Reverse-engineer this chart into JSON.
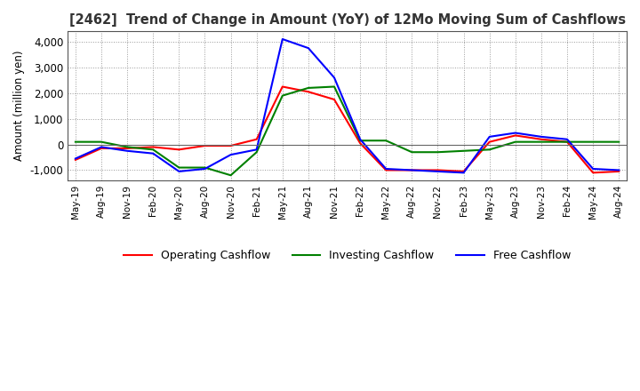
{
  "title": "[2462]  Trend of Change in Amount (YoY) of 12Mo Moving Sum of Cashflows",
  "ylabel": "Amount (million yen)",
  "ylim": [
    -1400,
    4400
  ],
  "yticks": [
    -1000,
    0,
    1000,
    2000,
    3000,
    4000
  ],
  "x_labels": [
    "May-19",
    "Aug-19",
    "Nov-19",
    "Feb-20",
    "May-20",
    "Aug-20",
    "Nov-20",
    "Feb-21",
    "May-21",
    "Aug-21",
    "Nov-21",
    "Feb-22",
    "May-22",
    "Aug-22",
    "Nov-22",
    "Feb-23",
    "May-23",
    "Aug-23",
    "Nov-23",
    "Feb-24",
    "May-24",
    "Aug-24"
  ],
  "operating": [
    -600,
    -150,
    -150,
    -100,
    -200,
    -50,
    -50,
    200,
    2250,
    2050,
    1750,
    50,
    -1000,
    -1000,
    -1000,
    -1050,
    100,
    350,
    200,
    100,
    -1100,
    -1050
  ],
  "investing": [
    100,
    100,
    -100,
    -200,
    -900,
    -900,
    -1200,
    -300,
    1900,
    2200,
    2250,
    150,
    150,
    -300,
    -300,
    -250,
    -200,
    100,
    100,
    100,
    100,
    100
  ],
  "free": [
    -550,
    -100,
    -250,
    -350,
    -1050,
    -950,
    -400,
    -200,
    4100,
    3750,
    2600,
    200,
    -950,
    -1000,
    -1050,
    -1100,
    300,
    450,
    300,
    200,
    -950,
    -1000
  ],
  "op_color": "#ff0000",
  "inv_color": "#008000",
  "free_color": "#0000ff",
  "bg_color": "#ffffff",
  "grid_color": "#999999",
  "title_color": "#333333"
}
